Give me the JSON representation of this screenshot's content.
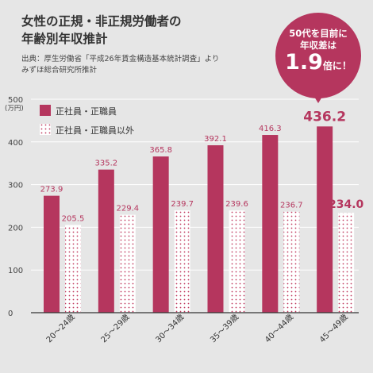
{
  "title_lines": [
    "女性の正規・非正規労働者の",
    "年齢別年収推計"
  ],
  "source_lines": [
    "出典：厚生労働省「平成26年賃金構造基本統計調査」より",
    "みずほ総合研究所推計"
  ],
  "callout": {
    "line1": "50代を目前に",
    "line2": "年収差は",
    "value": "1.9",
    "suffix": "倍に！"
  },
  "colors": {
    "regular": "#b5365e",
    "nonregular_dot": "#c0395f",
    "background": "#e6e6e6"
  },
  "chart_data": {
    "type": "bar",
    "categories": [
      "20～24歳",
      "25～29歳",
      "30～34歳",
      "35～39歳",
      "40～44歳",
      "45～49歳"
    ],
    "series": [
      {
        "name": "正社員・正職員",
        "values": [
          273.9,
          335.2,
          365.8,
          392.1,
          416.3,
          436.2
        ]
      },
      {
        "name": "正社員・正職員以外",
        "values": [
          205.5,
          229.4,
          239.7,
          239.6,
          236.7,
          234.0
        ]
      }
    ],
    "value_labels": [
      [
        "273.9",
        "335.2",
        "365.8",
        "392.1",
        "416.3",
        "436.2"
      ],
      [
        "205.5",
        "229.4",
        "239.7",
        "239.6",
        "236.7",
        "234.0"
      ]
    ],
    "y_ticks": [
      "0",
      "100",
      "200",
      "300",
      "400",
      "500"
    ],
    "ylim": [
      0,
      500
    ],
    "y_unit": "(万円)",
    "legend_position": "top-left",
    "grid": true
  }
}
